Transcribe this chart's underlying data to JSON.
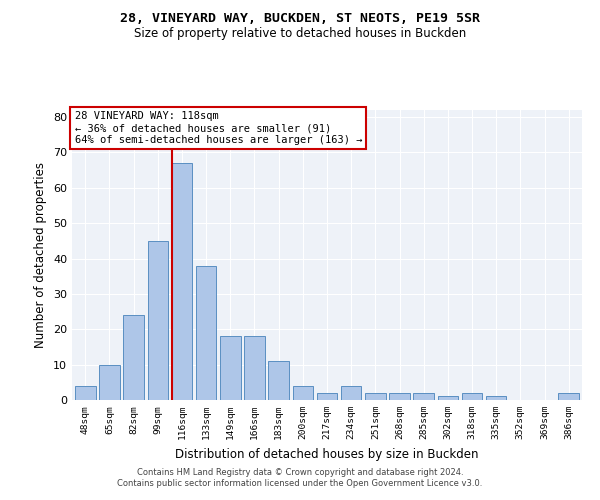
{
  "title1": "28, VINEYARD WAY, BUCKDEN, ST NEOTS, PE19 5SR",
  "title2": "Size of property relative to detached houses in Buckden",
  "xlabel": "Distribution of detached houses by size in Buckden",
  "ylabel": "Number of detached properties",
  "categories": [
    "48sqm",
    "65sqm",
    "82sqm",
    "99sqm",
    "116sqm",
    "133sqm",
    "149sqm",
    "166sqm",
    "183sqm",
    "200sqm",
    "217sqm",
    "234sqm",
    "251sqm",
    "268sqm",
    "285sqm",
    "302sqm",
    "318sqm",
    "335sqm",
    "352sqm",
    "369sqm",
    "386sqm"
  ],
  "values": [
    4,
    10,
    24,
    45,
    67,
    38,
    18,
    18,
    11,
    4,
    2,
    4,
    2,
    2,
    2,
    1,
    2,
    1,
    0,
    0,
    2
  ],
  "bar_color": "#aec6e8",
  "bar_edge_color": "#5a8fc2",
  "vline_color": "#cc0000",
  "annotation_box_text": "28 VINEYARD WAY: 118sqm\n← 36% of detached houses are smaller (91)\n64% of semi-detached houses are larger (163) →",
  "annotation_fontsize": 7.5,
  "box_edge_color": "#cc0000",
  "ylim": [
    0,
    82
  ],
  "yticks": [
    0,
    10,
    20,
    30,
    40,
    50,
    60,
    70,
    80
  ],
  "bg_color": "#eef2f8",
  "grid_color": "#ffffff",
  "footer1": "Contains HM Land Registry data © Crown copyright and database right 2024.",
  "footer2": "Contains public sector information licensed under the Open Government Licence v3.0."
}
